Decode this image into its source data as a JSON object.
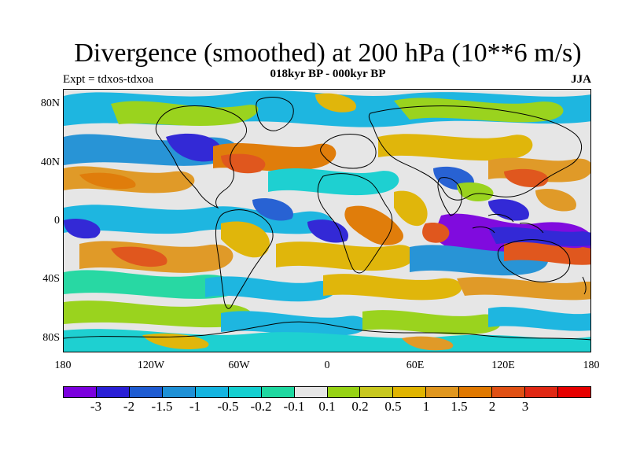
{
  "map": {
    "title": "Divergence (smoothed) at 200 hPa (10**6 m/s)",
    "subtitle": "018kyr BP - 000kyr BP",
    "experiment_label": "Expt = tdxos-tdxoa",
    "season": "JJA",
    "lat_ticks": [
      "80N",
      "40N",
      "0",
      "40S",
      "80S"
    ],
    "lon_ticks": [
      "180",
      "120W",
      "60W",
      "0",
      "60E",
      "120E",
      "180"
    ],
    "colorbar": {
      "colors": [
        "#7b00de",
        "#2a1fd6",
        "#1e5bd2",
        "#1e90d6",
        "#14b4e0",
        "#14cfd0",
        "#1ed8a0",
        "#e6e6e6",
        "#96d214",
        "#c8c81e",
        "#e0b400",
        "#e0961e",
        "#e07800",
        "#e05014",
        "#e02814",
        "#e60000"
      ],
      "labels": [
        "-3",
        "-2",
        "-1.5",
        "-1",
        "-0.5",
        "-0.2",
        "-0.1",
        "0.1",
        "0.2",
        "0.5",
        "1",
        "1.5",
        "2",
        "3"
      ]
    }
  }
}
